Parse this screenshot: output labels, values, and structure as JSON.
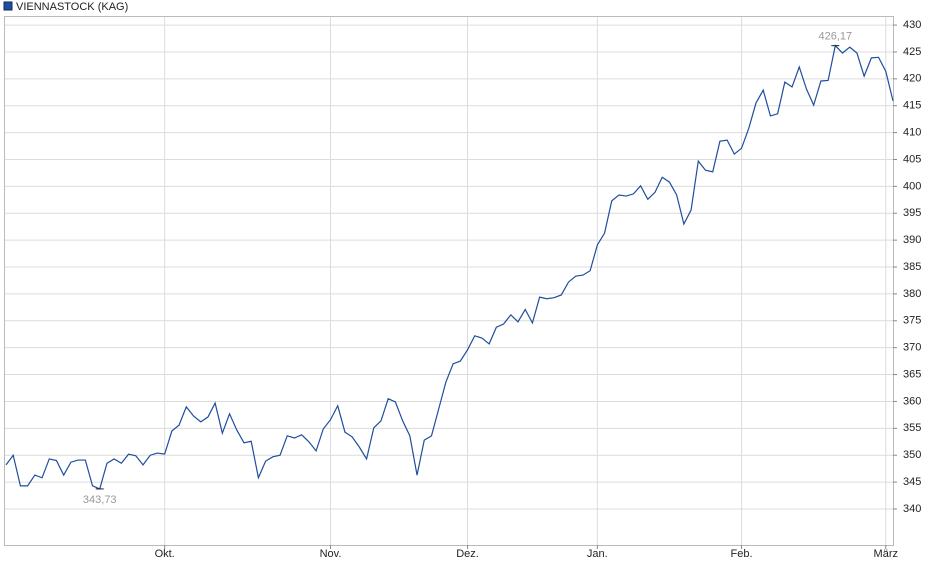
{
  "chart_data": {
    "type": "line",
    "categories": [
      null,
      null,
      null,
      null,
      null,
      null,
      null,
      null,
      null,
      null,
      null,
      null,
      null,
      null,
      null,
      null,
      null,
      null,
      null,
      null,
      null,
      null,
      "Okt.",
      null,
      null,
      null,
      null,
      null,
      null,
      null,
      null,
      null,
      null,
      null,
      null,
      null,
      null,
      null,
      null,
      null,
      null,
      null,
      null,
      null,
      null,
      "Nov.",
      null,
      null,
      null,
      null,
      null,
      null,
      null,
      null,
      null,
      null,
      null,
      null,
      null,
      null,
      null,
      null,
      null,
      null,
      "Dez.",
      null,
      null,
      null,
      null,
      null,
      null,
      null,
      null,
      null,
      null,
      null,
      null,
      null,
      null,
      null,
      null,
      null,
      "Jan.",
      null,
      null,
      null,
      null,
      null,
      null,
      null,
      null,
      null,
      null,
      null,
      null,
      null,
      null,
      null,
      null,
      null,
      null,
      null,
      "Feb.",
      null,
      null,
      null,
      null,
      null,
      null,
      null,
      null,
      null,
      null,
      null,
      null,
      null,
      null,
      null,
      null,
      null,
      null,
      null,
      "März",
      null
    ],
    "series": [
      {
        "name": "VIENNASTOCK (KAG)",
        "color": "#1f4e9c",
        "values": [
          348.2,
          350,
          344.3,
          344.3,
          346.3,
          345.8,
          349.3,
          349,
          346.3,
          348.7,
          349.1,
          349.1,
          344.3,
          343.73,
          348.5,
          349.3,
          348.5,
          350.2,
          349.9,
          348.2,
          350,
          350.4,
          350.2,
          354.5,
          355.6,
          359,
          357.3,
          356.2,
          357.1,
          359.7,
          354.1,
          357.7,
          354.7,
          352.3,
          352.6,
          345.8,
          348.9,
          349.7,
          350,
          353.6,
          353.2,
          353.8,
          352.5,
          350.8,
          354.9,
          356.6,
          359.2,
          354.3,
          353.4,
          351.5,
          349.3,
          355.1,
          356.4,
          360.5,
          359.9,
          356.4,
          353.6,
          346.3,
          352.8,
          353.6,
          358.6,
          363.6,
          367,
          367.5,
          369.6,
          372.2,
          371.8,
          370.7,
          373.8,
          374.4,
          376.1,
          374.8,
          377.1,
          374.6,
          379.4,
          379.1,
          379.3,
          379.8,
          382.2,
          383.3,
          383.5,
          384.3,
          389.1,
          391.3,
          397.3,
          398.4,
          398.2,
          398.6,
          400.1,
          397.6,
          398.9,
          401.7,
          400.8,
          398.4,
          393,
          395.6,
          404.7,
          403,
          402.7,
          408.4,
          408.6,
          406,
          407.1,
          410.8,
          415.5,
          417.9,
          413.1,
          413.5,
          419.4,
          418.5,
          422.2,
          418.1,
          415.1,
          419.6,
          419.7,
          426.17,
          424.8,
          425.9,
          424.8,
          420.5,
          423.9,
          424,
          421.4,
          415.9
        ],
        "value_labels": [
          null,
          null,
          null,
          null,
          null,
          null,
          null,
          null,
          null,
          null,
          null,
          null,
          null,
          "343,73",
          null,
          null,
          null,
          null,
          null,
          null,
          null,
          null,
          null,
          null,
          null,
          null,
          null,
          null,
          null,
          null,
          null,
          null,
          null,
          null,
          null,
          null,
          null,
          null,
          null,
          null,
          null,
          null,
          null,
          null,
          null,
          null,
          null,
          null,
          null,
          null,
          null,
          null,
          null,
          null,
          null,
          null,
          null,
          null,
          null,
          null,
          null,
          null,
          null,
          null,
          null,
          null,
          null,
          null,
          null,
          null,
          null,
          null,
          null,
          null,
          null,
          null,
          null,
          null,
          null,
          null,
          null,
          null,
          null,
          null,
          null,
          null,
          null,
          null,
          null,
          null,
          null,
          null,
          null,
          null,
          null,
          null,
          null,
          null,
          null,
          null,
          null,
          null,
          null,
          null,
          null,
          null,
          null,
          null,
          null,
          null,
          null,
          null,
          null,
          null,
          null,
          "426,17",
          null,
          null,
          null,
          null,
          null,
          null,
          null,
          null
        ]
      }
    ],
    "ylim": [
      333.3,
      431.5
    ],
    "yticks": [
      340,
      345,
      350,
      355,
      360,
      365,
      370,
      375,
      380,
      385,
      390,
      395,
      400,
      405,
      410,
      415,
      420,
      425,
      430
    ],
    "grid": true
  }
}
